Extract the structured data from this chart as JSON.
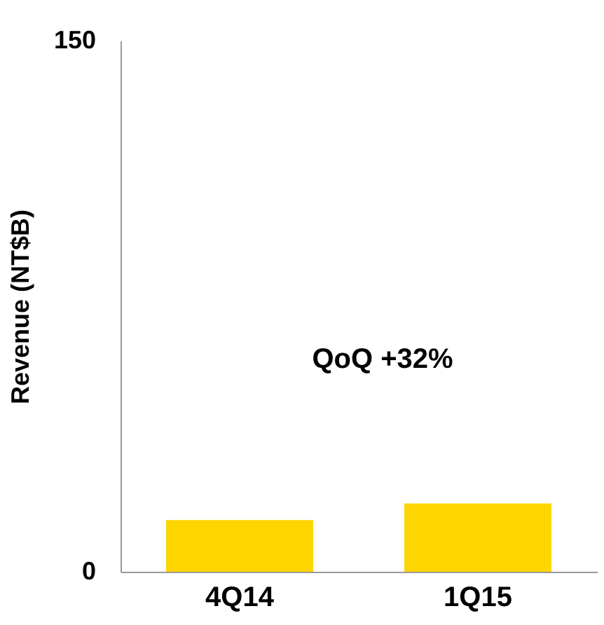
{
  "chart_data": {
    "type": "bar",
    "ylabel": "Revenue (NT$B)",
    "categories": [
      "4Q14",
      "1Q15"
    ],
    "values": [
      14.6,
      19.3
    ],
    "color": "#ffd500",
    "ylim": [
      0,
      150
    ],
    "yticks": [
      0,
      150
    ],
    "grid": false,
    "annotations": [
      "QoQ +32%"
    ]
  }
}
